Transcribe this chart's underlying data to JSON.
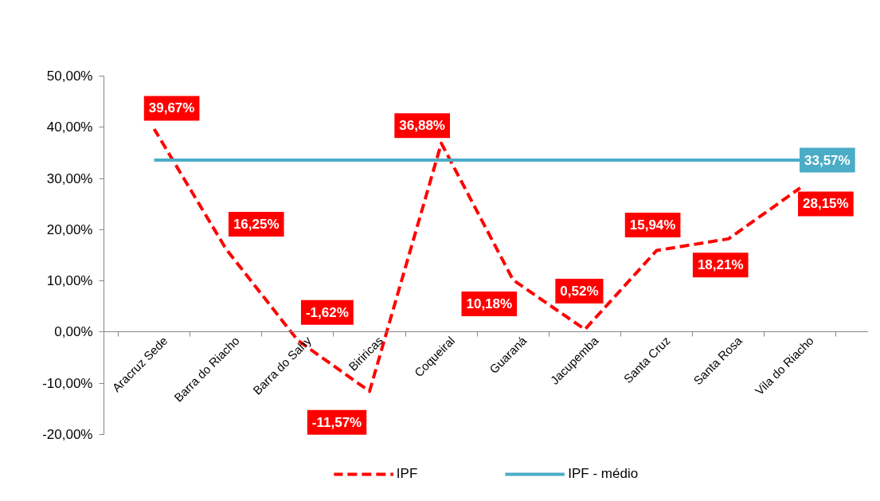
{
  "chart_data": {
    "type": "line",
    "categories": [
      "Aracruz Sede",
      "Barra do Riacho",
      "Barra do Sahy",
      "Biriricas",
      "Coqueiral",
      "Guaraná",
      "Jacupemba",
      "Santa Cruz",
      "Santa Rosa",
      "Vila do Riacho"
    ],
    "series": [
      {
        "name": "IPF",
        "color": "#ff0000",
        "line_style": "dashed",
        "values": [
          39.67,
          16.25,
          -1.62,
          -11.57,
          36.88,
          10.18,
          0.52,
          15.94,
          18.21,
          28.15
        ],
        "value_labels": [
          "39,67%",
          "16,25%",
          "-1,62%",
          "-11,57%",
          "36,88%",
          "10,18%",
          "0,52%",
          "15,94%",
          "18,21%",
          "28,15%"
        ]
      },
      {
        "name": "IPF - médio",
        "color": "#4bacc6",
        "line_style": "solid",
        "values": [
          33.57,
          33.57,
          33.57,
          33.57,
          33.57,
          33.57,
          33.57,
          33.57,
          33.57,
          33.57
        ],
        "value_labels": [
          null,
          null,
          null,
          null,
          null,
          null,
          null,
          null,
          null,
          "33,57%"
        ]
      }
    ],
    "ylim": [
      -20,
      50
    ],
    "yticks": [
      {
        "value": -20,
        "label": "-20,00%"
      },
      {
        "value": -10,
        "label": "-10,00%"
      },
      {
        "value": 0,
        "label": "0,00%"
      },
      {
        "value": 10,
        "label": "10,00%"
      },
      {
        "value": 20,
        "label": "20,00%"
      },
      {
        "value": 30,
        "label": "30,00%"
      },
      {
        "value": 40,
        "label": "40,00%"
      },
      {
        "value": 50,
        "label": "50,00%"
      }
    ],
    "legend": "bottom"
  }
}
